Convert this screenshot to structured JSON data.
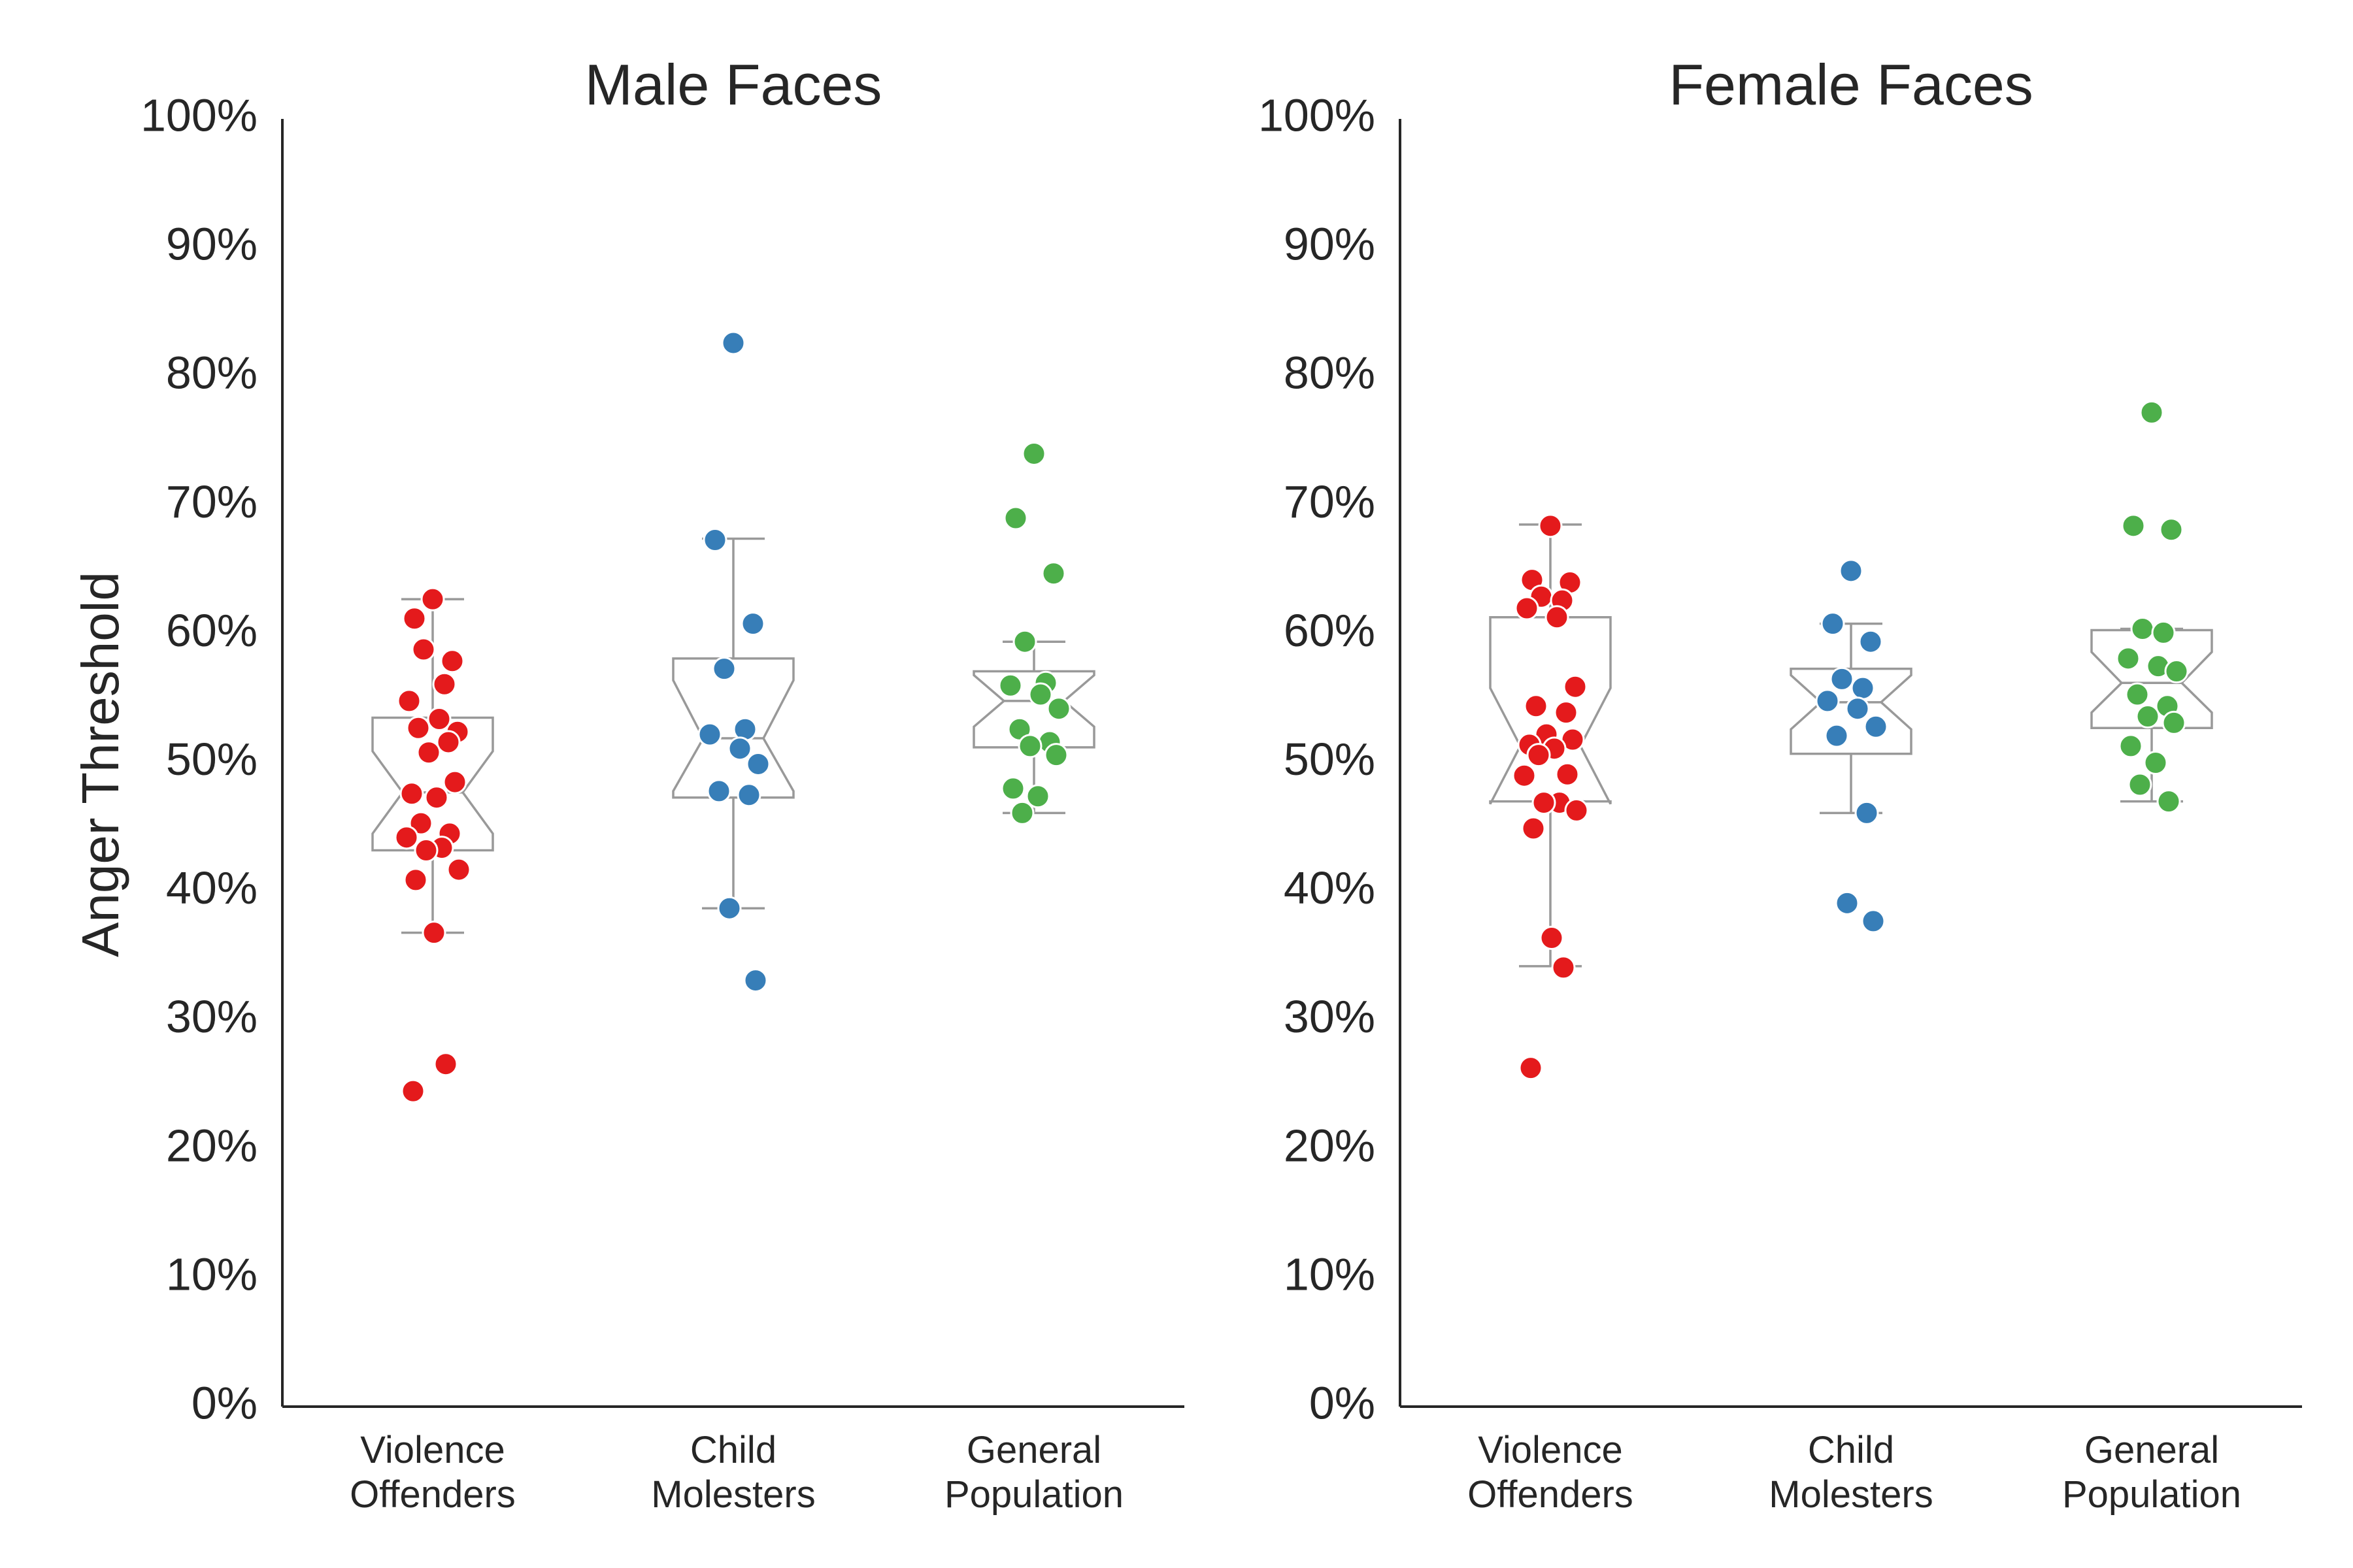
{
  "figure": {
    "ylabel": "Anger Threshold"
  },
  "chart_data": [
    {
      "type": "box",
      "title": "Male Faces",
      "ylabel": "Anger Threshold",
      "ylim": [
        0,
        100
      ],
      "yticks": [
        "0%",
        "10%",
        "20%",
        "30%",
        "40%",
        "50%",
        "60%",
        "70%",
        "80%",
        "90%",
        "100%"
      ],
      "grid": false,
      "notched_boxes": true,
      "categories": [
        "Violence\nOffenders",
        "Child\nMolesters",
        "General\nPopulation"
      ],
      "groups": [
        {
          "name": "Violence Offenders",
          "color": "#e41a1c",
          "box": {
            "whisker_low": 36.8,
            "q1": 43.2,
            "median": 47.7,
            "q3": 53.5,
            "whisker_high": 62.7,
            "notch": [
              44.5,
              50.9
            ]
          },
          "points": [
            62.7,
            61.2,
            57.9,
            58.8,
            56.1,
            54.8,
            53.4,
            52.4,
            52.7,
            51.6,
            50.8,
            48.5,
            47.6,
            47.3,
            45.3,
            44.5,
            44.2,
            43.4,
            43.2,
            41.7,
            40.9,
            36.8,
            26.6,
            24.5
          ]
        },
        {
          "name": "Child Molesters",
          "color": "#377eb8",
          "box": {
            "whisker_low": 38.7,
            "q1": 47.3,
            "median": 51.9,
            "q3": 58.1,
            "whisker_high": 67.4,
            "notch": [
              47.8,
              56.4
            ]
          },
          "points": [
            82.6,
            67.3,
            60.8,
            57.3,
            52.6,
            52.2,
            51.1,
            49.9,
            47.8,
            47.5,
            38.7,
            33.1
          ]
        },
        {
          "name": "General Population",
          "color": "#4daf4a",
          "box": {
            "whisker_low": 46.1,
            "q1": 51.2,
            "median": 54.8,
            "q3": 57.1,
            "whisker_high": 59.4,
            "notch": [
              52.8,
              56.8
            ]
          },
          "points": [
            74.0,
            69.0,
            64.7,
            59.4,
            56.2,
            56.0,
            55.3,
            54.2,
            52.6,
            51.6,
            51.3,
            50.6,
            48.0,
            47.4,
            46.1
          ]
        }
      ]
    },
    {
      "type": "box",
      "title": "Female Faces",
      "ylim": [
        0,
        100
      ],
      "yticks": [
        "0%",
        "10%",
        "20%",
        "30%",
        "40%",
        "50%",
        "60%",
        "70%",
        "80%",
        "90%",
        "100%"
      ],
      "grid": false,
      "notched_boxes": true,
      "categories": [
        "Violence\nOffenders",
        "Child\nMolesters",
        "General\nPopulation"
      ],
      "groups": [
        {
          "name": "Violence Offenders",
          "color": "#e41a1c",
          "box": {
            "whisker_low": 34.2,
            "q1": 47.0,
            "median": 51.3,
            "q3": 61.3,
            "whisker_high": 68.5,
            "notch": [
              46.8,
              55.8
            ]
          },
          "points": [
            68.4,
            64.2,
            64.0,
            62.9,
            62.6,
            62.0,
            61.3,
            55.9,
            54.4,
            53.9,
            52.2,
            51.8,
            51.4,
            51.1,
            50.6,
            49.1,
            49.0,
            46.9,
            46.9,
            46.3,
            44.9,
            36.4,
            34.1,
            26.3
          ]
        },
        {
          "name": "Child Molesters",
          "color": "#377eb8",
          "box": {
            "whisker_low": 46.1,
            "q1": 50.7,
            "median": 54.7,
            "q3": 57.3,
            "whisker_high": 60.8,
            "notch": [
              52.6,
              56.8
            ]
          },
          "points": [
            64.9,
            60.8,
            59.4,
            56.5,
            55.8,
            54.8,
            54.2,
            52.8,
            52.1,
            46.1,
            39.1,
            37.7
          ]
        },
        {
          "name": "General Population",
          "color": "#4daf4a",
          "box": {
            "whisker_low": 47.0,
            "q1": 52.7,
            "median": 56.2,
            "q3": 60.3,
            "whisker_high": 60.4,
            "notch": [
              53.9,
              58.6
            ]
          },
          "points": [
            77.2,
            68.4,
            68.1,
            60.4,
            60.1,
            58.1,
            57.5,
            57.1,
            55.3,
            54.4,
            53.6,
            53.1,
            51.3,
            50.0,
            48.3,
            47.0
          ]
        }
      ]
    }
  ]
}
